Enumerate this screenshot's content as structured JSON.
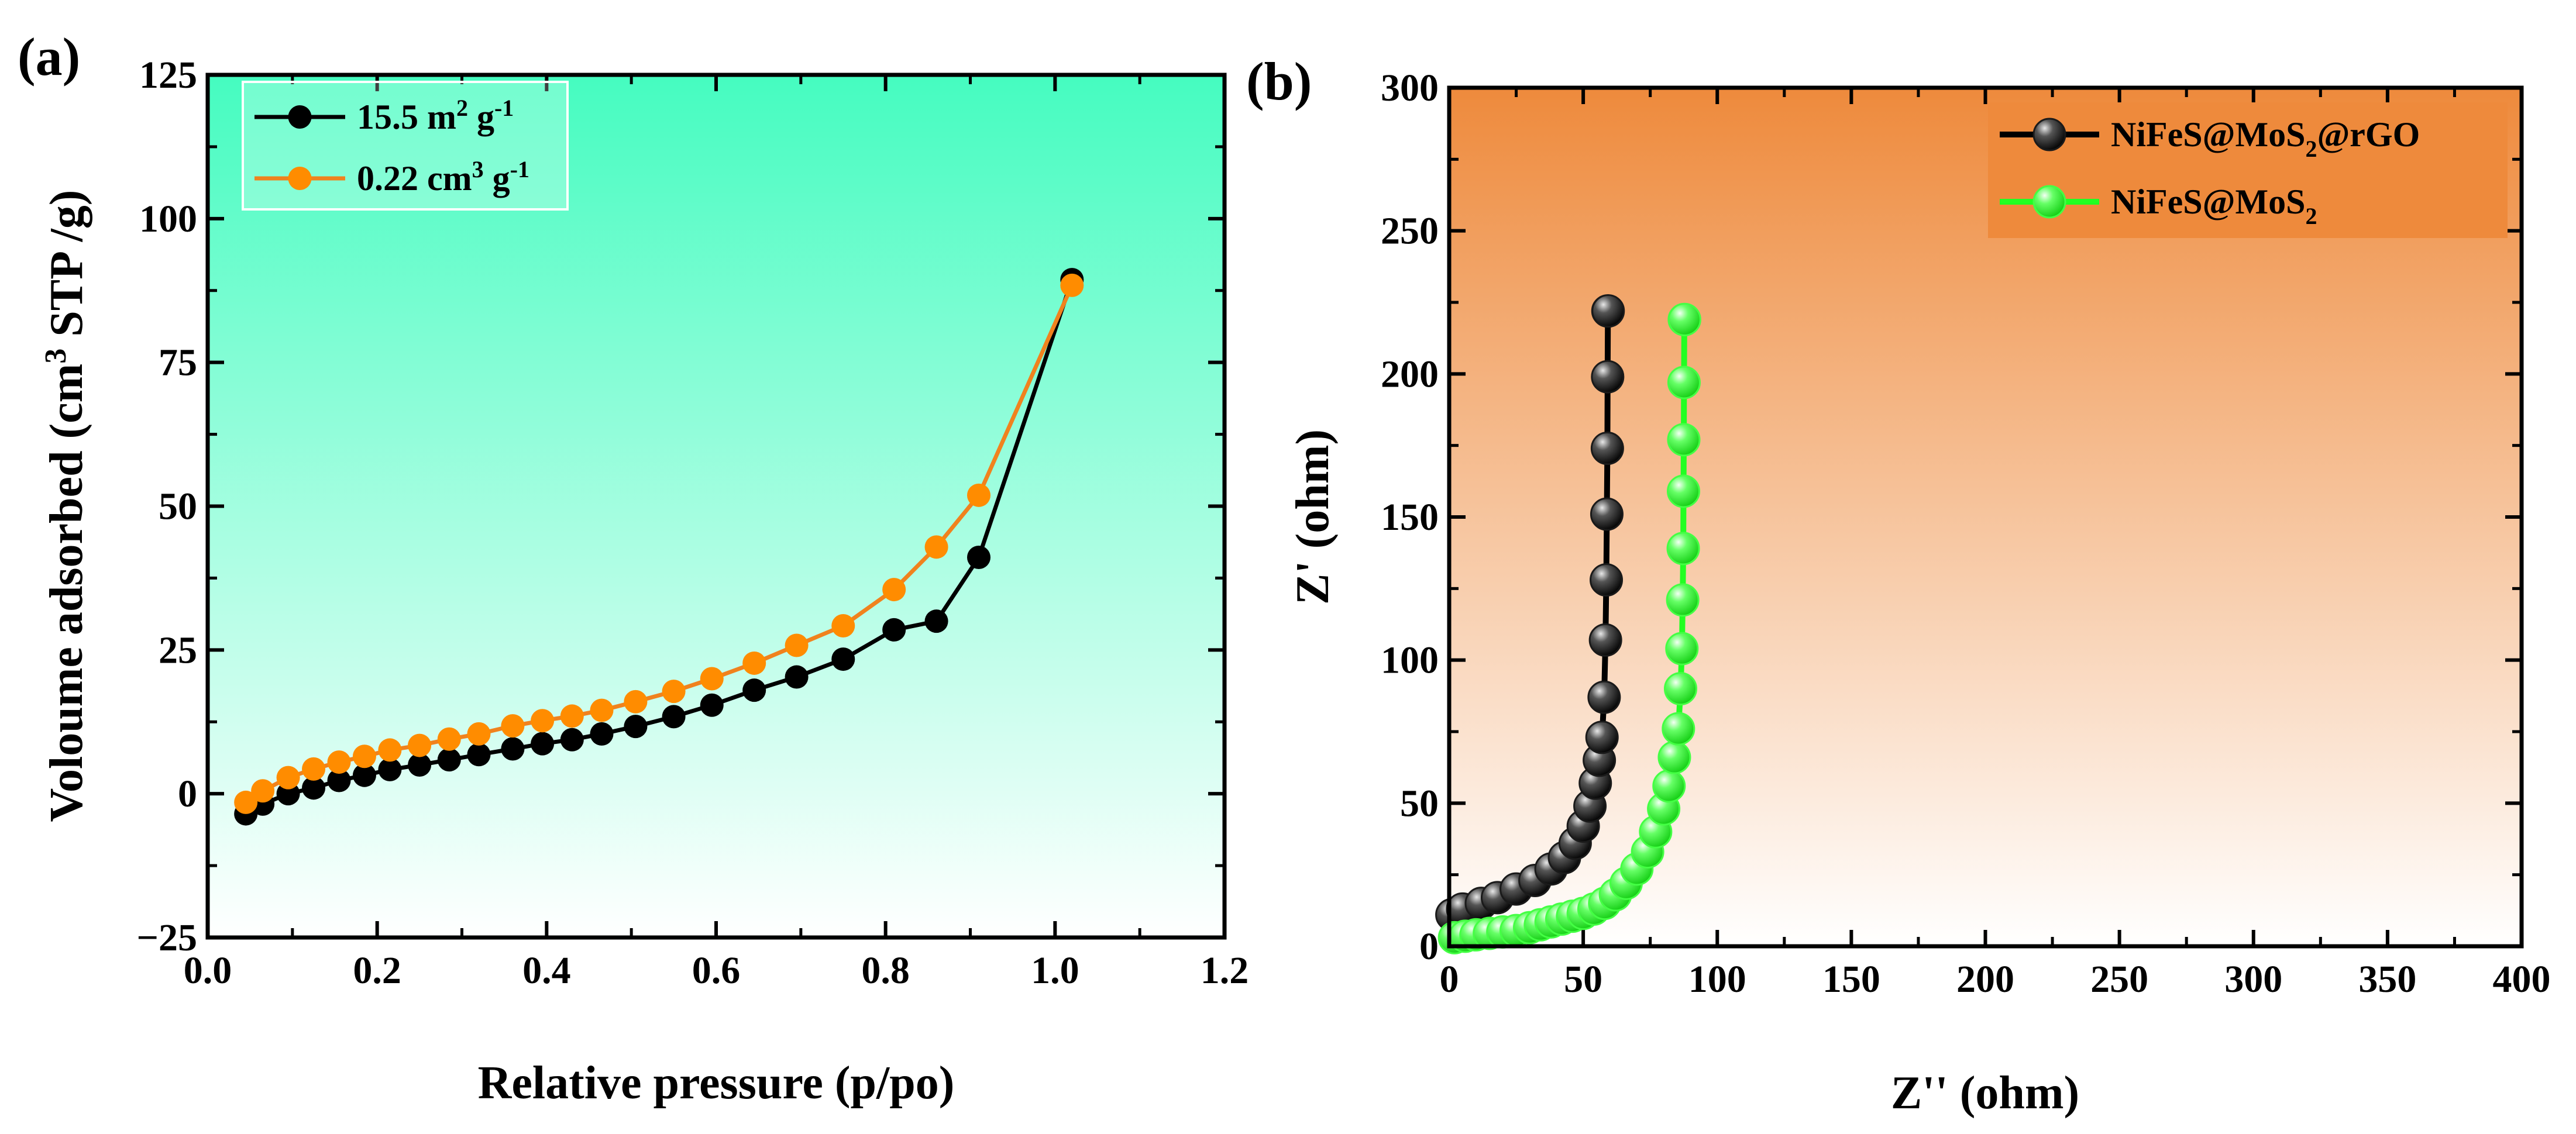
{
  "chart_data": [
    {
      "panel": "(a)",
      "type": "line",
      "xlabel": "Relative pressure (p/po)",
      "ylabel": {
        "pre": "Voloume adsorbed (cm",
        "sup": "3",
        "post": " STP /g)"
      },
      "xlim": [
        0.0,
        1.2
      ],
      "ylim": [
        -25,
        125
      ],
      "xticks": [
        "0.0",
        "0.2",
        "0.4",
        "0.6",
        "0.8",
        "1.0",
        "1.2"
      ],
      "yticks": [
        "−25",
        "0",
        "25",
        "50",
        "75",
        "100",
        "125"
      ],
      "xtick_values": [
        0.0,
        0.2,
        0.4,
        0.6,
        0.8,
        1.0,
        1.2
      ],
      "ytick_values": [
        -25,
        0,
        25,
        50,
        75,
        100,
        125
      ],
      "background": {
        "top": "#45fcc0",
        "bottom": "#ffffff"
      },
      "legend_position": "top-left",
      "series": [
        {
          "name": "15.5 m2 g-1",
          "legend": [
            [
              "15.5 m",
              ""
            ],
            [
              "2",
              "sup"
            ],
            [
              " g",
              ""
            ],
            [
              "-1",
              "sup"
            ]
          ],
          "color": "#000000",
          "marker": "#000000",
          "x": [
            0.045,
            0.065,
            0.095,
            0.125,
            0.155,
            0.185,
            0.215,
            0.25,
            0.285,
            0.32,
            0.36,
            0.395,
            0.43,
            0.465,
            0.505,
            0.55,
            0.595,
            0.645,
            0.695,
            0.75,
            0.81,
            0.86,
            0.91,
            1.02
          ],
          "y": [
            -3.5,
            -1.8,
            0.0,
            1.0,
            2.3,
            3.2,
            4.2,
            5.0,
            5.9,
            6.8,
            7.8,
            8.7,
            9.4,
            10.4,
            11.7,
            13.4,
            15.4,
            18.0,
            20.3,
            23.4,
            28.5,
            30.0,
            41.1,
            89.4
          ]
        },
        {
          "name": "0.22 cm3 g-1",
          "legend": [
            [
              "0.22 cm",
              ""
            ],
            [
              "3",
              "sup"
            ],
            [
              " g",
              ""
            ],
            [
              "-1",
              "sup"
            ]
          ],
          "color": "#f0821e",
          "marker": "#ff8c00",
          "x": [
            0.045,
            0.065,
            0.095,
            0.125,
            0.155,
            0.185,
            0.215,
            0.25,
            0.285,
            0.32,
            0.36,
            0.395,
            0.43,
            0.465,
            0.505,
            0.55,
            0.595,
            0.645,
            0.695,
            0.75,
            0.81,
            0.86,
            0.91,
            1.02
          ],
          "y": [
            -1.5,
            0.5,
            2.8,
            4.3,
            5.5,
            6.5,
            7.6,
            8.4,
            9.5,
            10.4,
            11.8,
            12.7,
            13.5,
            14.5,
            16.0,
            17.8,
            20.0,
            22.7,
            25.8,
            29.2,
            35.5,
            42.9,
            51.9,
            88.4
          ]
        }
      ]
    },
    {
      "panel": "(b)",
      "type": "line",
      "xlabel": "Z'' (ohm)",
      "ylabel": "Z' (ohm)",
      "xlim": [
        0,
        400
      ],
      "ylim": [
        0,
        300
      ],
      "xticks": [
        "0",
        "50",
        "100",
        "150",
        "200",
        "250",
        "300",
        "350",
        "400"
      ],
      "yticks": [
        "0",
        "50",
        "100",
        "150",
        "200",
        "250",
        "300"
      ],
      "xtick_values": [
        0,
        50,
        100,
        150,
        200,
        250,
        300,
        350,
        400
      ],
      "ytick_values": [
        0,
        50,
        100,
        150,
        200,
        250,
        300
      ],
      "background": {
        "top": "#ee8a3c",
        "bottom": "#ffffff"
      },
      "legend_position": "top-right",
      "series": [
        {
          "name": "NiFeS@MoS2@rGO",
          "legend": [
            [
              "NiFeS@MoS",
              ""
            ],
            [
              "2",
              "sub"
            ],
            [
              "@rGO",
              ""
            ]
          ],
          "color": "#000000",
          "marker": "#1a1a1a",
          "x": [
            1,
            5,
            12,
            18,
            25,
            32,
            38,
            43,
            47,
            50,
            52.5,
            54.5,
            56,
            57,
            57.8,
            58.3,
            58.6,
            58.8,
            59,
            59.1,
            59.2,
            59.3
          ],
          "y": [
            11,
            13,
            15,
            17,
            20,
            23,
            27,
            31,
            36,
            42,
            49,
            57,
            65,
            73,
            87,
            107,
            128,
            151,
            174,
            199,
            222,
            222
          ]
        },
        {
          "name": "NiFeS@MoS2",
          "legend": [
            [
              "NiFeS@MoS",
              ""
            ],
            [
              "2",
              "sub"
            ]
          ],
          "color": "#22ff22",
          "marker": "#44ff44",
          "x": [
            2,
            6,
            10,
            15,
            20,
            25,
            30,
            34,
            38,
            42,
            46,
            50,
            54,
            58,
            62,
            66,
            70,
            74,
            77,
            80,
            82,
            84,
            85.5,
            86.3,
            86.8,
            87.1,
            87.3,
            87.4,
            87.5,
            87.6,
            87.7,
            87.8
          ],
          "y": [
            3,
            3.5,
            4,
            4.5,
            5,
            5.5,
            6.5,
            7.5,
            8.5,
            9.5,
            10.5,
            11.5,
            13,
            15,
            18,
            22,
            27,
            33,
            40,
            48,
            56,
            66,
            76,
            90,
            104,
            121,
            139,
            159,
            177,
            197,
            219,
            219
          ]
        }
      ]
    }
  ]
}
